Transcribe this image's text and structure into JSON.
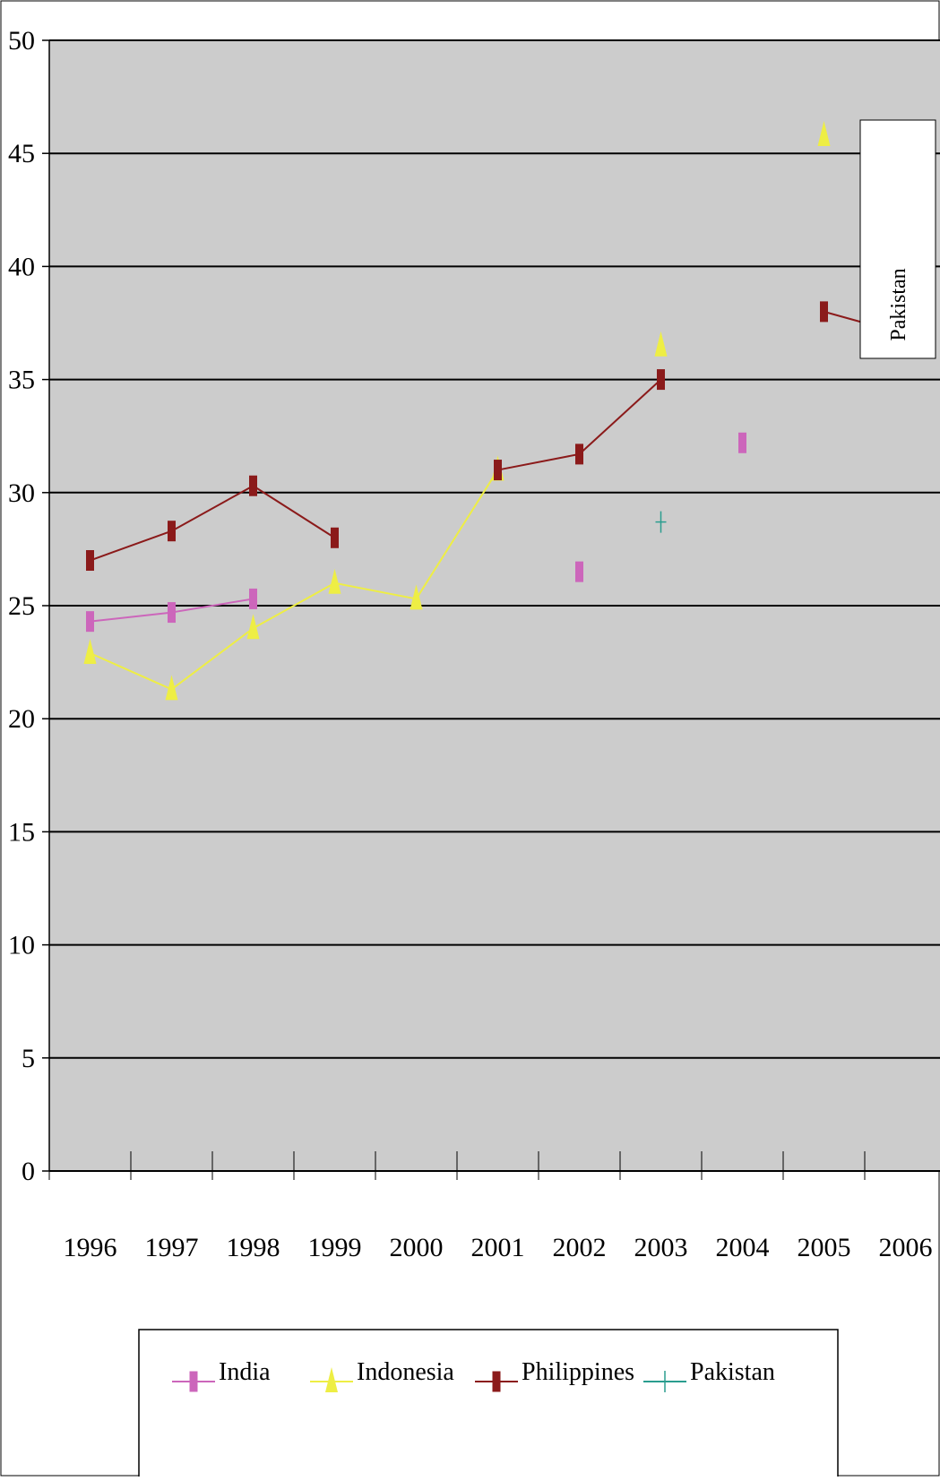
{
  "chart_data": {
    "type": "line",
    "title": "",
    "xlabel": "",
    "ylabel": "",
    "x": [
      "1996",
      "1997",
      "1998",
      "1999",
      "2000",
      "2001",
      "2002",
      "2003",
      "2004",
      "2005",
      "2006"
    ],
    "ylim": [
      0,
      50
    ],
    "yticks": [
      "0",
      "5",
      "10",
      "15",
      "20",
      "25",
      "30",
      "35",
      "40",
      "45",
      "50"
    ],
    "grid": true,
    "legend_position": "bottom",
    "series": [
      {
        "name": "India",
        "color": "#cc66bb",
        "marker": "bar",
        "values": [
          24.3,
          24.7,
          25.3,
          null,
          null,
          null,
          26.5,
          null,
          32.2,
          null,
          null
        ]
      },
      {
        "name": "Indonesia",
        "color": "#eeee44",
        "marker": "triangle",
        "values": [
          22.9,
          21.3,
          24.0,
          26.0,
          25.3,
          31.0,
          null,
          36.5,
          null,
          45.8,
          null
        ]
      },
      {
        "name": "Philippines",
        "color": "#8b1a1a",
        "marker": "bar",
        "values": [
          27.0,
          28.3,
          30.3,
          28.0,
          null,
          31.0,
          31.7,
          35.0,
          null,
          38.0,
          37.0
        ]
      },
      {
        "name": "Pakistan",
        "color": "#2a9d8f",
        "marker": "plus",
        "values": [
          null,
          null,
          null,
          null,
          null,
          null,
          null,
          28.7,
          null,
          null,
          null
        ]
      }
    ],
    "annotations": [
      {
        "text": "Pakistan",
        "orientation": "vertical"
      }
    ]
  }
}
